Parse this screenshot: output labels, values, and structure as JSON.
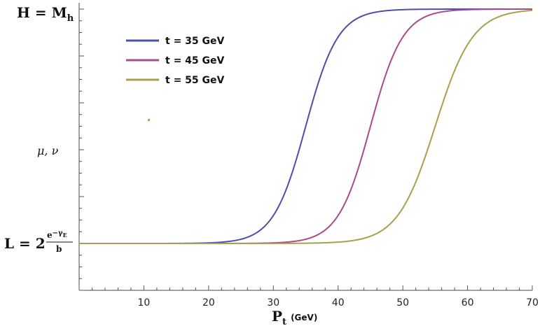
{
  "chart_data": {
    "type": "line",
    "xlabel_main": "P",
    "xlabel_sub": "t",
    "xlabel_unit": "(GeV)",
    "xlim": [
      0,
      70
    ],
    "x_ticks": [
      10,
      20,
      30,
      40,
      50,
      60,
      70
    ],
    "x_tick_labels": [
      "10",
      "20",
      "30",
      "40",
      "50",
      "60",
      "70"
    ],
    "ylim": [
      -0.2,
      1.03
    ],
    "y_label_top": {
      "value": 1.0,
      "main": "H = M",
      "sub": "h"
    },
    "y_label_mid": {
      "value": 0.5,
      "text": "μ, ν"
    },
    "y_label_bottom": {
      "value": 0.0,
      "main": "L = 2",
      "frac_num": "e",
      "frac_exp": "−γ",
      "frac_exp_sub": "E",
      "frac_den": "b"
    },
    "series": [
      {
        "name": "t = 35 GeV",
        "midpoint": 35,
        "width": 2.5,
        "color": "#4b4fa8"
      },
      {
        "name": "t = 45 GeV",
        "midpoint": 45,
        "width": 2.5,
        "color": "#a84b8e"
      },
      {
        "name": "t = 55 GeV",
        "midpoint": 55,
        "width": 2.9,
        "color": "#a8a04b"
      }
    ],
    "legend": {
      "placement": "top-left"
    },
    "grid": false
  }
}
